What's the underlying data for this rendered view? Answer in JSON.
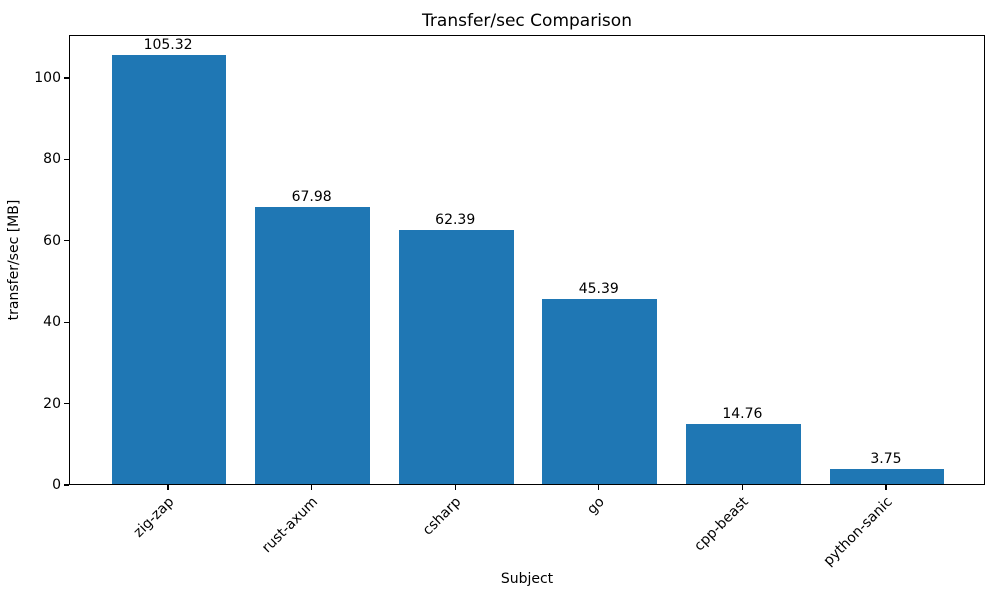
{
  "chart_data": {
    "type": "bar",
    "title": "Transfer/sec Comparison",
    "xlabel": "Subject",
    "ylabel": "transfer/sec [MB]",
    "categories": [
      "zig-zap",
      "rust-axum",
      "csharp",
      "go",
      "cpp-beast",
      "python-sanic"
    ],
    "values": [
      105.32,
      67.98,
      62.39,
      45.39,
      14.76,
      3.75
    ],
    "bar_value_labels": [
      "105.32",
      "67.98",
      "62.39",
      "45.39",
      "14.76",
      "3.75"
    ],
    "yticks": [
      0,
      20,
      40,
      60,
      80,
      100
    ],
    "ylim": [
      0,
      110.59
    ],
    "bar_color": "#1f77b4",
    "grid": false,
    "legend_position": "none",
    "xtick_rotation_deg": 45
  }
}
